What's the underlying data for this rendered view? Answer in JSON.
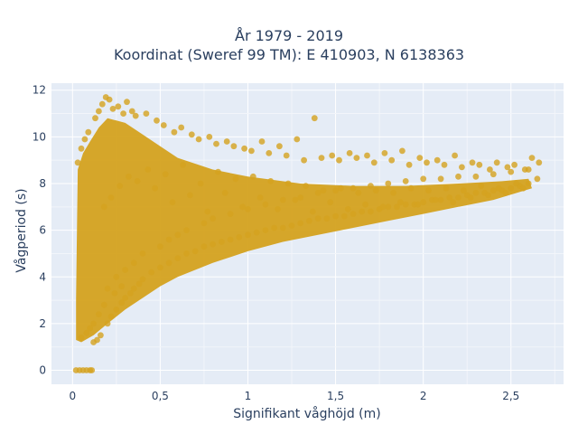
{
  "chart_data": {
    "type": "scatter",
    "title_line1": "År 1979 - 2019",
    "title_line2": "Koordinat (Sweref 99 TM): E 410903, N 6138363",
    "xlabel": "Signifikant våghöjd (m)",
    "ylabel": "Vågperiod (s)",
    "xlim": [
      -0.12,
      2.8
    ],
    "ylim": [
      -0.6,
      12.3
    ],
    "xticks": [
      {
        "value": 0,
        "label": "0"
      },
      {
        "value": 0.5,
        "label": "0,5"
      },
      {
        "value": 1,
        "label": "1"
      },
      {
        "value": 1.5,
        "label": "1,5"
      },
      {
        "value": 2,
        "label": "2"
      },
      {
        "value": 2.5,
        "label": "2,5"
      }
    ],
    "yticks": [
      {
        "value": 0,
        "label": "0"
      },
      {
        "value": 2,
        "label": "2"
      },
      {
        "value": 4,
        "label": "4"
      },
      {
        "value": 6,
        "label": "6"
      },
      {
        "value": 8,
        "label": "8"
      },
      {
        "value": 10,
        "label": "10"
      },
      {
        "value": 12,
        "label": "12"
      }
    ],
    "grid": true,
    "background": "#e5ecf6",
    "marker_color": "#d4a21f",
    "series": [
      {
        "x": [
          0.02,
          0.04,
          0.06,
          0.08,
          0.1,
          0.11,
          0.12,
          0.14,
          0.16,
          0.2,
          0.22,
          0.25,
          0.28,
          0.3,
          0.33,
          0.35,
          0.38,
          0.4,
          0.45,
          0.5,
          0.55,
          0.6,
          0.65,
          0.7,
          0.75,
          0.8,
          0.85,
          0.9,
          0.95,
          1.0,
          1.05,
          1.1,
          1.15,
          1.2,
          1.25,
          1.3,
          1.35,
          1.4,
          1.45,
          1.5,
          1.55,
          1.6,
          1.65,
          1.7,
          1.75,
          1.8,
          1.85,
          1.9,
          1.95,
          2.0,
          2.05,
          2.1,
          2.15,
          2.2,
          2.25,
          2.3,
          2.35,
          2.4,
          2.45,
          2.5,
          2.55,
          2.6,
          2.65,
          0.03,
          0.05,
          0.07,
          0.09,
          0.13,
          0.15,
          0.17,
          0.19,
          0.21,
          0.23,
          0.26,
          0.29,
          0.31,
          0.34,
          0.36,
          0.42,
          0.48,
          0.52,
          0.58,
          0.62,
          0.68,
          0.72,
          0.78,
          0.82,
          0.88,
          0.92,
          0.98,
          1.02,
          1.08,
          1.12,
          1.18,
          1.22,
          1.28,
          1.32,
          1.38,
          1.42,
          1.48,
          1.52,
          1.58,
          1.62,
          1.68,
          1.72,
          1.78,
          1.82,
          1.88,
          1.92,
          1.98,
          2.02,
          2.08,
          2.12,
          2.18,
          2.22,
          2.28,
          2.32,
          2.38,
          2.42,
          2.48,
          2.52,
          2.58,
          2.62,
          2.66,
          0.2,
          0.25,
          0.3,
          0.35,
          0.4,
          0.5,
          0.55,
          0.6,
          0.65,
          0.75,
          0.8,
          0.9,
          1.0,
          1.1,
          1.2,
          1.3,
          1.4,
          1.5,
          1.6,
          1.7,
          1.8,
          1.9,
          2.0,
          2.1,
          2.2,
          2.3,
          2.4,
          2.5,
          2.6,
          0.18,
          0.22,
          0.27,
          0.32,
          0.37,
          0.43,
          0.47,
          0.53,
          0.57,
          0.63,
          0.67,
          0.73,
          0.77,
          0.83,
          0.87,
          0.93,
          0.97,
          1.03,
          1.07,
          1.13,
          1.17,
          1.23,
          1.27,
          1.33,
          1.37,
          1.43,
          1.47,
          1.53,
          1.57,
          1.63,
          1.67,
          1.73,
          1.77,
          1.83,
          1.87,
          1.93,
          1.97,
          2.03,
          2.07,
          2.13,
          2.17,
          2.23,
          2.27,
          2.33,
          2.37,
          2.43,
          2.47,
          2.53,
          2.57,
          0.05,
          0.08,
          0.1,
          0.12,
          0.15,
          0.18,
          0.24,
          0.28
        ],
        "y": [
          0.0,
          0.0,
          0.0,
          0.0,
          0.0,
          0.0,
          1.2,
          1.3,
          1.5,
          2.0,
          2.3,
          2.6,
          2.9,
          3.1,
          3.3,
          3.5,
          3.7,
          3.9,
          4.2,
          4.4,
          4.6,
          4.8,
          5.0,
          5.1,
          5.3,
          5.4,
          5.5,
          5.6,
          5.7,
          5.8,
          5.9,
          6.0,
          6.1,
          6.1,
          6.2,
          6.3,
          6.4,
          6.5,
          6.5,
          6.6,
          6.6,
          6.7,
          6.8,
          6.8,
          6.9,
          7.0,
          7.0,
          7.1,
          7.1,
          7.2,
          7.3,
          7.3,
          7.4,
          7.4,
          7.5,
          7.6,
          7.6,
          7.7,
          7.7,
          7.8,
          7.9,
          8.0,
          8.2,
          8.9,
          9.5,
          9.9,
          10.2,
          10.8,
          11.1,
          11.4,
          11.7,
          11.6,
          11.2,
          11.3,
          11.0,
          11.5,
          11.1,
          10.9,
          11.0,
          10.7,
          10.5,
          10.2,
          10.4,
          10.1,
          9.9,
          10.0,
          9.7,
          9.8,
          9.6,
          9.5,
          9.4,
          9.8,
          9.3,
          9.6,
          9.2,
          9.9,
          9.0,
          10.8,
          9.1,
          9.2,
          9.0,
          9.3,
          9.1,
          9.2,
          8.9,
          9.3,
          9.0,
          9.4,
          8.8,
          9.1,
          8.9,
          9.0,
          8.8,
          9.2,
          8.7,
          8.9,
          8.8,
          8.6,
          8.9,
          8.7,
          8.8,
          8.6,
          9.1,
          8.9,
          3.5,
          4.0,
          4.3,
          4.6,
          5.0,
          5.3,
          5.6,
          5.8,
          6.0,
          6.3,
          6.5,
          6.7,
          6.9,
          7.1,
          7.3,
          7.4,
          7.6,
          7.7,
          7.8,
          7.9,
          8.0,
          8.1,
          8.2,
          8.2,
          8.3,
          8.3,
          8.4,
          8.5,
          8.6,
          7.0,
          7.4,
          7.9,
          8.3,
          8.1,
          8.6,
          7.8,
          8.4,
          7.2,
          8.8,
          7.5,
          8.0,
          6.8,
          8.5,
          7.6,
          8.2,
          7.0,
          8.3,
          7.4,
          8.1,
          6.9,
          8.0,
          7.3,
          7.9,
          6.8,
          7.7,
          7.2,
          7.8,
          6.9,
          7.6,
          7.1,
          7.7,
          7.0,
          7.6,
          7.2,
          7.8,
          7.1,
          7.7,
          7.3,
          7.8,
          7.2,
          7.7,
          7.4,
          7.9,
          7.5,
          7.8,
          7.6,
          8.0,
          7.8,
          1.4,
          1.6,
          1.8,
          2.0,
          2.4,
          2.8,
          3.3,
          3.6
        ]
      }
    ]
  }
}
